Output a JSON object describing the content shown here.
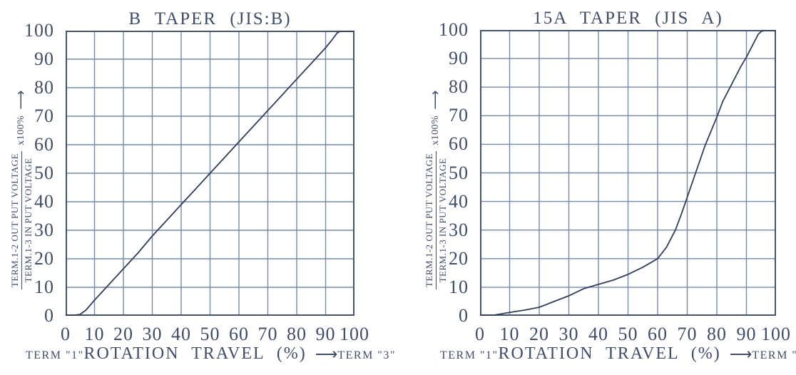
{
  "colors": {
    "text": "#414d68",
    "grid": "#7689a9",
    "axis": "#46536f",
    "curve": "#323e5a",
    "background": "#ffffff"
  },
  "axis_labels": {
    "y_numerator": "TERM.1-2 OUT PUT VOLTAGE",
    "y_denominator": "TERM.1-3 IN PUT VOLTAGE",
    "y_multiplier": "x100%",
    "y_arrow": "⟶",
    "x_label": "ROTATION TRAVEL (%)",
    "x_arrow": "⟶",
    "term_left": "TERM \"1\"",
    "term_right": "TERM \"3\""
  },
  "chart_data": [
    {
      "type": "line",
      "title": "B TAPER (JIS:B)",
      "xlabel": "ROTATION TRAVEL (%)",
      "ylabel": "TERM.1-2 OUT PUT VOLTAGE / TERM.1-3 IN PUT VOLTAGE x100%",
      "xlim": [
        0,
        100
      ],
      "ylim": [
        0,
        100
      ],
      "x_ticks": [
        0,
        10,
        20,
        30,
        40,
        50,
        60,
        70,
        80,
        90,
        100
      ],
      "y_ticks": [
        0,
        10,
        20,
        30,
        40,
        50,
        60,
        70,
        80,
        90,
        100
      ],
      "grid": true,
      "legend": "none",
      "series": [
        {
          "x": [
            0,
            3,
            5,
            7,
            10,
            15,
            20,
            25,
            30,
            35,
            40,
            45,
            50,
            55,
            60,
            65,
            70,
            75,
            80,
            85,
            90,
            92,
            94,
            95,
            100
          ],
          "y": [
            0,
            0,
            0.5,
            2,
            5.5,
            11,
            16.5,
            22,
            28,
            33.5,
            39,
            44.5,
            50,
            55.5,
            61,
            66.5,
            72,
            77.5,
            83,
            88.5,
            94,
            96.5,
            99.2,
            100,
            100
          ]
        }
      ]
    },
    {
      "type": "line",
      "title": "15A TAPER (JIS A)",
      "xlabel": "ROTATION TRAVEL (%)",
      "ylabel": "TERM.1-2 OUT PUT VOLTAGE / TERM.1-3 IN PUT VOLTAGE x100%",
      "xlim": [
        0,
        100
      ],
      "ylim": [
        0,
        100
      ],
      "x_ticks": [
        0,
        10,
        20,
        30,
        40,
        50,
        60,
        70,
        80,
        90,
        100
      ],
      "y_ticks": [
        0,
        10,
        20,
        30,
        40,
        50,
        60,
        70,
        80,
        90,
        100
      ],
      "grid": true,
      "legend": "none",
      "series": [
        {
          "x": [
            0,
            5,
            10,
            15,
            20,
            25,
            30,
            35,
            40,
            45,
            50,
            55,
            60,
            63,
            66,
            68,
            70,
            72,
            74,
            76,
            78,
            80,
            82,
            85,
            88,
            90,
            92,
            94,
            95,
            96,
            100
          ],
          "y": [
            0,
            0.3,
            1.2,
            2,
            3,
            5,
            7,
            9.5,
            11,
            12.5,
            14.5,
            17,
            20,
            24,
            30,
            35.5,
            41.5,
            47.5,
            53.5,
            59.5,
            64.5,
            69.5,
            75,
            81,
            87,
            90.5,
            94.5,
            98.5,
            99.5,
            100,
            100
          ]
        }
      ]
    }
  ]
}
